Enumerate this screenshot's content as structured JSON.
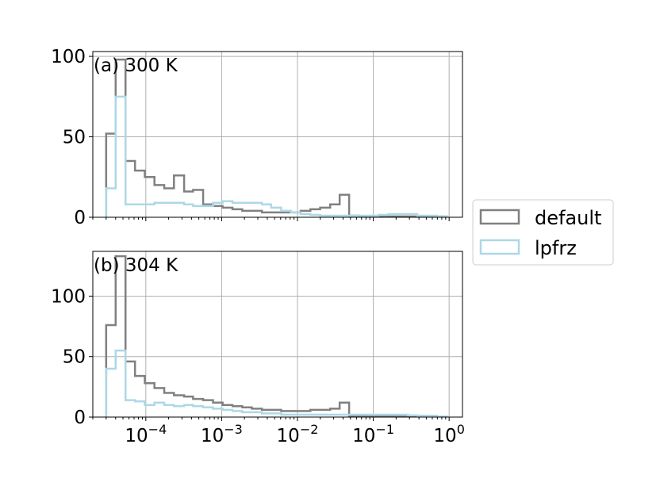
{
  "chart_data": [
    {
      "type": "step-histogram",
      "panel_label": "(a) 300 K",
      "xscale": "log",
      "xlim": [
        2e-05,
        1.5
      ],
      "ylim": [
        0,
        103
      ],
      "yticks": [
        0,
        50,
        100
      ],
      "grid": true,
      "bin_edges": [
        3e-05,
        4e-05,
        5.4e-05,
        7.2e-05,
        9.7e-05,
        0.00013,
        0.000175,
        0.000235,
        0.00032,
        0.00042,
        0.00057,
        0.00077,
        0.00103,
        0.00139,
        0.00187,
        0.0025,
        0.0034,
        0.0045,
        0.0061,
        0.0082,
        0.011,
        0.0148,
        0.0199,
        0.027,
        0.036,
        0.048,
        0.065,
        0.087,
        0.117,
        0.158,
        0.212,
        0.285,
        0.38,
        0.51,
        0.69,
        0.93
      ],
      "series": [
        {
          "name": "default",
          "color": "#808080",
          "values": [
            52,
            98,
            35,
            29,
            25,
            20,
            18,
            26,
            16,
            17,
            8,
            7,
            6,
            5,
            4,
            4,
            3,
            3,
            3,
            3,
            4,
            5,
            6,
            8,
            14,
            1,
            0.5,
            0.5,
            0.5,
            0.5,
            0.5,
            0.5,
            0.5,
            0.5,
            0.5
          ]
        },
        {
          "name": "lpfrz",
          "color": "#add8e6",
          "values": [
            18,
            75,
            8,
            8,
            8,
            9,
            9,
            9,
            8,
            7,
            7,
            9,
            10,
            9,
            9,
            9,
            8,
            6,
            4,
            3,
            2,
            1.5,
            1,
            1,
            1,
            1,
            1,
            1,
            1.5,
            2,
            2,
            2,
            1,
            1,
            0.5
          ]
        }
      ]
    },
    {
      "type": "step-histogram",
      "panel_label": "(b) 304 K",
      "xscale": "log",
      "xlim": [
        2e-05,
        1.5
      ],
      "ylim": [
        0,
        137
      ],
      "yticks": [
        0,
        50,
        100
      ],
      "xticks": [
        0.0001,
        0.001,
        0.01,
        0.1,
        1
      ],
      "xtick_labels": [
        {
          "base": "10",
          "exp": "−4"
        },
        {
          "base": "10",
          "exp": "−3"
        },
        {
          "base": "10",
          "exp": "−2"
        },
        {
          "base": "10",
          "exp": "−1"
        },
        {
          "base": "10",
          "exp": "0"
        }
      ],
      "grid": true,
      "bin_edges": [
        3e-05,
        4e-05,
        5.4e-05,
        7.2e-05,
        9.7e-05,
        0.00013,
        0.000175,
        0.000235,
        0.00032,
        0.00042,
        0.00057,
        0.00077,
        0.00103,
        0.00139,
        0.00187,
        0.0025,
        0.0034,
        0.0045,
        0.0061,
        0.0082,
        0.011,
        0.0148,
        0.0199,
        0.027,
        0.036,
        0.048,
        0.065,
        0.087,
        0.117,
        0.158,
        0.212,
        0.285,
        0.38,
        0.51,
        0.69,
        0.93
      ],
      "series": [
        {
          "name": "default",
          "color": "#808080",
          "values": [
            76,
            133,
            46,
            34,
            28,
            24,
            20,
            18,
            17,
            15,
            14,
            12,
            10,
            9,
            8,
            7,
            6,
            6,
            5,
            5,
            5,
            6,
            6,
            7,
            12,
            1,
            1,
            1,
            1,
            1,
            1,
            1,
            1,
            1,
            0.5
          ]
        },
        {
          "name": "lpfrz",
          "color": "#add8e6",
          "values": [
            40,
            55,
            14,
            13,
            10,
            12,
            10,
            9,
            10,
            9,
            8,
            7,
            6,
            5,
            4,
            4,
            3,
            3,
            2,
            2,
            2,
            2,
            2,
            2,
            2,
            2,
            2,
            2,
            2,
            2,
            2,
            1.5,
            1,
            1,
            0.5
          ]
        }
      ]
    }
  ],
  "legend": {
    "placement": "right",
    "entries": [
      {
        "label": "default",
        "color": "#808080"
      },
      {
        "label": "lpfrz",
        "color": "#add8e6"
      }
    ]
  }
}
